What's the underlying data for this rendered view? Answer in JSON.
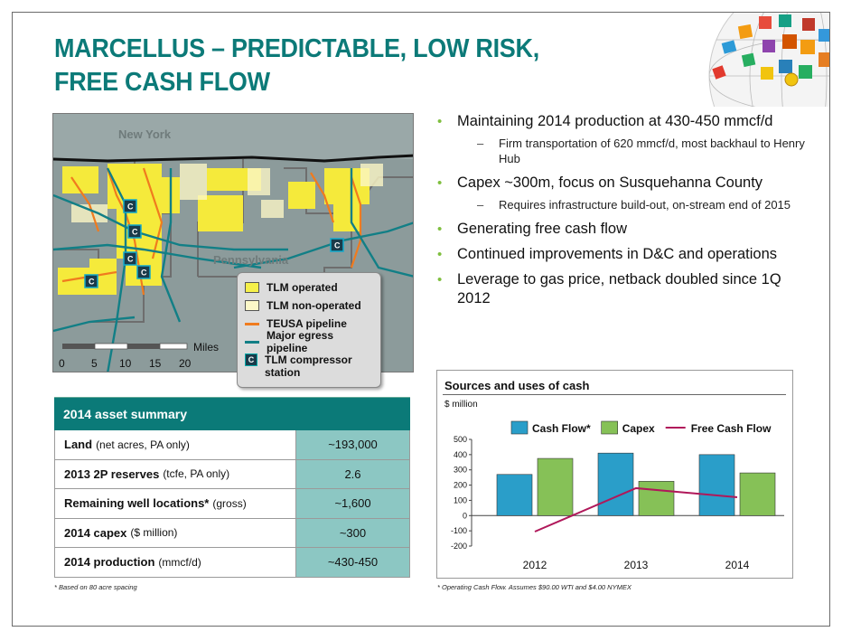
{
  "title_line1": "MARCELLUS – PREDICTABLE, LOW RISK,",
  "title_line2": "FREE CASH FLOW",
  "map": {
    "label_state_ny": "New York",
    "label_state_pa": "Pennsylvania",
    "compressor_glyph": "C",
    "scale_label": "Miles",
    "scale_ticks": [
      "0",
      "5",
      "10",
      "15",
      "20"
    ],
    "legend": [
      {
        "label": "TLM operated",
        "kind": "swatch",
        "color": "#f5f04a"
      },
      {
        "label": "TLM non-operated",
        "kind": "swatch",
        "color": "#fbf7c8"
      },
      {
        "label": "TEUSA pipeline",
        "kind": "line",
        "color": "#f07b1e"
      },
      {
        "label": "Major egress pipeline",
        "kind": "line",
        "color": "#127f86"
      },
      {
        "label": "TLM compressor",
        "label2": "station",
        "kind": "compressor",
        "color": "#1a3b4a"
      }
    ]
  },
  "bullets": [
    {
      "text": "Maintaining 2014 production at 430-450 mmcf/d",
      "subs": [
        "Firm transportation of 620 mmcf/d, most backhaul to Henry Hub"
      ]
    },
    {
      "text": "Capex ~300m, focus on Susquehanna County",
      "subs": [
        "Requires infrastructure build-out, on-stream end of 2015"
      ]
    },
    {
      "text": "Generating free cash flow",
      "subs": []
    },
    {
      "text": "Continued improvements in D&C  and operations",
      "subs": []
    },
    {
      "text": "Leverage to gas price, netback doubled since 1Q 2012",
      "subs": []
    }
  ],
  "asset_summary": {
    "header": "2014 asset summary",
    "rows": [
      {
        "key": "Land",
        "sub": "(net acres, PA only)",
        "value": "~193,000"
      },
      {
        "key": "2013 2P reserves",
        "sub": "(tcfe, PA only)",
        "value": "2.6"
      },
      {
        "key": "Remaining well locations*",
        "sub": "(gross)",
        "value": "~1,600"
      },
      {
        "key": "2014 capex",
        "sub": "($ million)",
        "value": "~300"
      },
      {
        "key": "2014 production",
        "sub": "(mmcf/d)",
        "value": "~430-450"
      }
    ],
    "footnote": "* Based on 80 acre spacing"
  },
  "chart_data": {
    "type": "bar",
    "title": "Sources and uses of cash",
    "unit_label": "$ million",
    "categories": [
      "2012",
      "2013",
      "2014"
    ],
    "series": [
      {
        "name": "Cash Flow*",
        "kind": "bar",
        "color": "#2a9ec9",
        "values": [
          270,
          410,
          400
        ]
      },
      {
        "name": "Capex",
        "kind": "bar",
        "color": "#86c157",
        "values": [
          375,
          225,
          280
        ]
      },
      {
        "name": "Free Cash Flow",
        "kind": "line",
        "color": "#b0185a",
        "values": [
          -105,
          180,
          120
        ]
      }
    ],
    "ylim": [
      -200,
      500
    ],
    "yticks": [
      -200,
      -100,
      0,
      100,
      200,
      300,
      400,
      500
    ],
    "legend_position": "top",
    "grid": false,
    "footnote": "* Operating Cash Flow. Assumes $90.00 WTI and $4.00 NYMEX"
  }
}
